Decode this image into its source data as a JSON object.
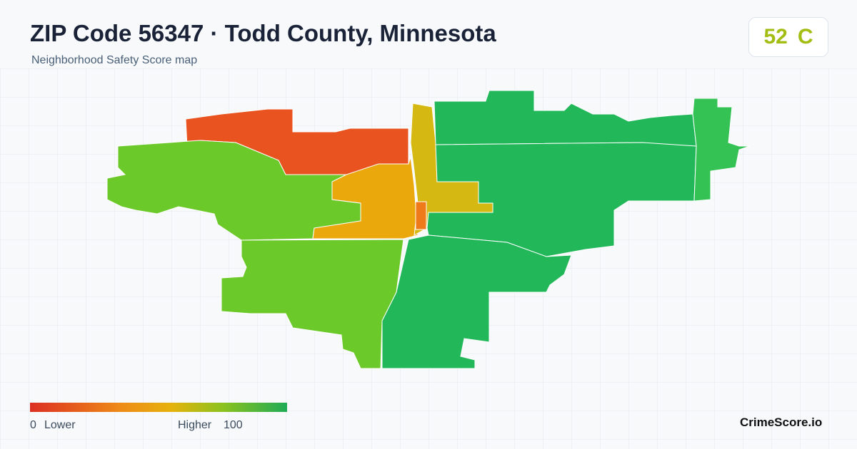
{
  "header": {
    "title": "ZIP Code 56347 · Todd County, Minnesota",
    "subtitle": "Neighborhood Safety Score map"
  },
  "score": {
    "value": "52",
    "grade": "C"
  },
  "legend": {
    "min": "0",
    "min_label": "Lower",
    "max_label": "Higher",
    "max": "100"
  },
  "brand": "CrimeScore.io"
}
